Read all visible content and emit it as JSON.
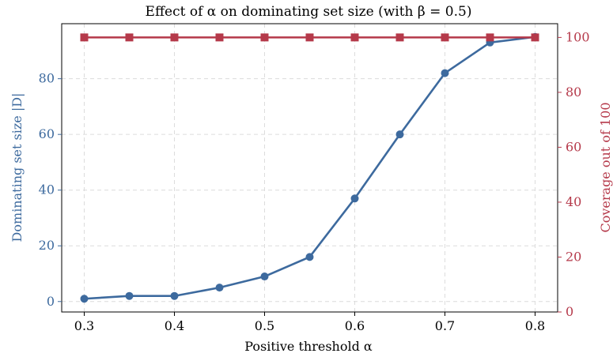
{
  "chart_data": {
    "type": "line",
    "title": "Effect of α on dominating set size (with β = 0.5)",
    "xlabel": "Positive threshold α",
    "ylabel_left": "Dominating set size |D|",
    "ylabel_right": "Coverage out of 100",
    "x": [
      0.3,
      0.35,
      0.4,
      0.45,
      0.5,
      0.55,
      0.6,
      0.65,
      0.7,
      0.75,
      0.8
    ],
    "xlim": [
      0.275,
      0.825
    ],
    "x_ticks": [
      0.3,
      0.4,
      0.5,
      0.6,
      0.7,
      0.8
    ],
    "ylim_left": [
      -3.75,
      99.75
    ],
    "y_ticks_left": [
      0,
      20,
      40,
      60,
      80
    ],
    "ylim_right": [
      0,
      105
    ],
    "y_ticks_right": [
      0,
      20,
      40,
      60,
      80,
      100
    ],
    "grid": true,
    "series": [
      {
        "axis": "left",
        "marker": "circle",
        "color": "#3d6a9e",
        "values": [
          1,
          2,
          2,
          5,
          9,
          16,
          37,
          60,
          82,
          93,
          95
        ]
      },
      {
        "axis": "right",
        "marker": "square",
        "color": "#b5394a",
        "values": [
          100,
          100,
          100,
          100,
          100,
          100,
          100,
          100,
          100,
          100,
          100
        ]
      }
    ]
  }
}
